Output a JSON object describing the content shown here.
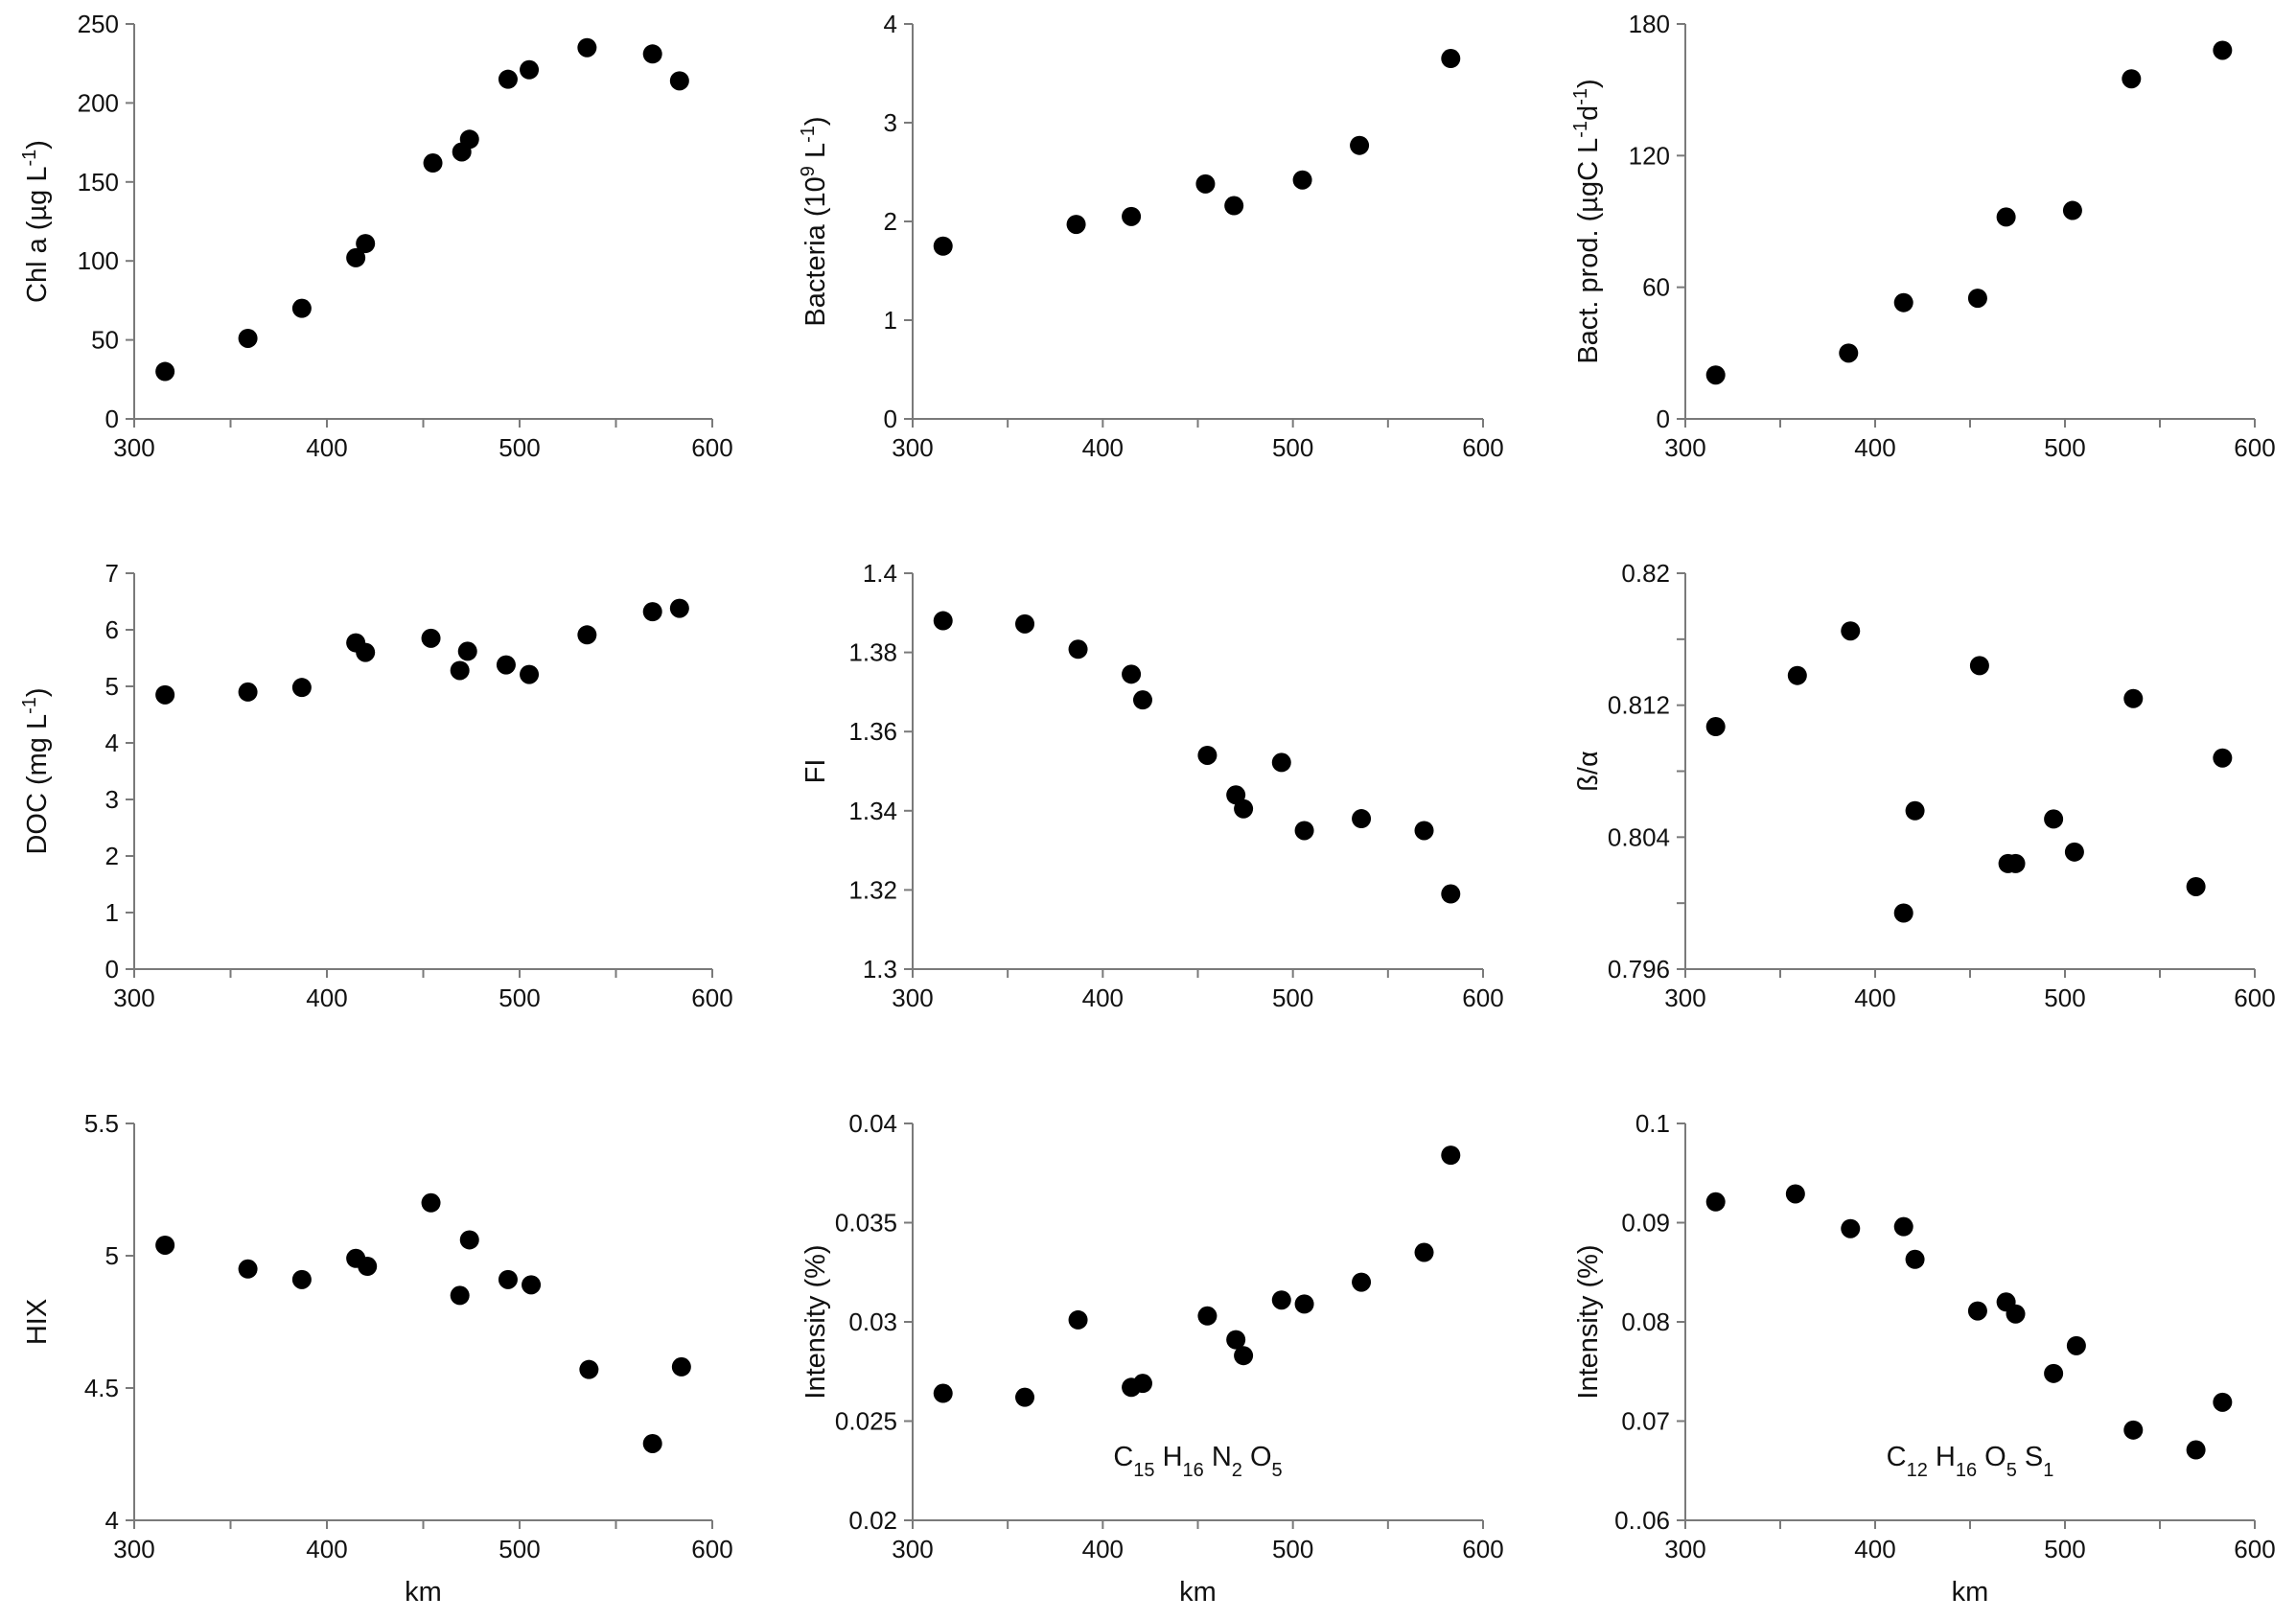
{
  "chart_data": [
    {
      "type": "scatter",
      "panel": "chla",
      "xlabel": "",
      "ylabel_parts": [
        {
          "t": "Chl a (µg L"
        },
        {
          "t": "-1",
          "sup": true
        },
        {
          "t": ")"
        }
      ],
      "xlim": [
        300,
        600
      ],
      "ylim": [
        0,
        250
      ],
      "xticks": [
        300,
        400,
        500,
        600
      ],
      "xtick_labels": [
        "300",
        "400",
        "500",
        "600"
      ],
      "yticks": [
        0,
        50,
        100,
        150,
        200,
        250
      ],
      "ytick_labels": [
        "0",
        "50",
        "100",
        "150",
        "200",
        "250"
      ],
      "x": [
        316,
        359,
        387,
        415,
        420,
        455,
        470,
        474,
        494,
        505,
        535,
        569,
        583
      ],
      "y": [
        30,
        51,
        70,
        102,
        111,
        162,
        169,
        177,
        215,
        221,
        235,
        231,
        214
      ]
    },
    {
      "type": "scatter",
      "panel": "bacteria",
      "xlabel": "",
      "ylabel_parts": [
        {
          "t": "Bacteria (10"
        },
        {
          "t": "9",
          "sup": true
        },
        {
          "t": " L"
        },
        {
          "t": "-1",
          "sup": true
        },
        {
          "t": ")"
        }
      ],
      "xlim": [
        300,
        600
      ],
      "ylim": [
        0,
        4
      ],
      "xticks": [
        300,
        400,
        500,
        600
      ],
      "xtick_labels": [
        "300",
        "400",
        "500",
        "600"
      ],
      "yticks": [
        0,
        1,
        2,
        3,
        4
      ],
      "ytick_labels": [
        "0",
        "1",
        "2",
        "3",
        "4"
      ],
      "x": [
        316,
        386,
        415,
        454,
        469,
        505,
        535,
        583
      ],
      "y": [
        1.75,
        1.97,
        2.05,
        2.38,
        2.16,
        2.42,
        2.77,
        3.65
      ]
    },
    {
      "type": "scatter",
      "panel": "bact-prod",
      "xlabel": "",
      "ylabel_parts": [
        {
          "t": "Bact. prod. (µgC L"
        },
        {
          "t": "-1",
          "sup": true
        },
        {
          "t": "d"
        },
        {
          "t": "-1",
          "sup": true
        },
        {
          "t": ")"
        }
      ],
      "xlim": [
        300,
        600
      ],
      "ylim": [
        0,
        180
      ],
      "xticks": [
        300,
        400,
        500,
        600
      ],
      "xtick_labels": [
        "300",
        "400",
        "500",
        "600"
      ],
      "yticks": [
        0,
        60,
        120,
        180
      ],
      "ytick_labels": [
        "0",
        "60",
        "120",
        "180"
      ],
      "x": [
        316,
        386,
        415,
        454,
        469,
        504,
        535,
        583
      ],
      "y": [
        20,
        30,
        53,
        55,
        92,
        95,
        155,
        168
      ]
    },
    {
      "type": "scatter",
      "panel": "doc",
      "xlabel": "",
      "ylabel_parts": [
        {
          "t": "DOC (mg L"
        },
        {
          "t": "-1",
          "sup": true
        },
        {
          "t": ")"
        }
      ],
      "xlim": [
        300,
        600
      ],
      "ylim": [
        0,
        7
      ],
      "xticks": [
        300,
        400,
        500,
        600
      ],
      "xtick_labels": [
        "300",
        "400",
        "500",
        "600"
      ],
      "yticks": [
        0,
        1,
        2,
        3,
        4,
        5,
        6,
        7
      ],
      "ytick_labels": [
        "0",
        "1",
        "2",
        "3",
        "4",
        "5",
        "6",
        "7"
      ],
      "x": [
        316,
        359,
        387,
        415,
        420,
        454,
        469,
        473,
        493,
        505,
        535,
        569,
        583
      ],
      "y": [
        4.85,
        4.9,
        4.98,
        5.77,
        5.6,
        5.85,
        5.28,
        5.62,
        5.38,
        5.21,
        5.91,
        6.32,
        6.38
      ]
    },
    {
      "type": "scatter",
      "panel": "fi",
      "xlabel": "",
      "ylabel_parts": [
        {
          "t": "FI"
        }
      ],
      "xlim": [
        300,
        600
      ],
      "ylim": [
        1.3,
        1.4
      ],
      "xticks": [
        300,
        400,
        500,
        600
      ],
      "xtick_labels": [
        "300",
        "400",
        "500",
        "600"
      ],
      "yticks": [
        1.3,
        1.32,
        1.34,
        1.36,
        1.38,
        1.4
      ],
      "ytick_labels": [
        "1.3",
        "1.32",
        "1.34",
        "1.36",
        "1.38",
        "1.4"
      ],
      "x": [
        316,
        359,
        387,
        415,
        421,
        455,
        470,
        474,
        494,
        506,
        536,
        569,
        583
      ],
      "y": [
        1.388,
        1.3872,
        1.3808,
        1.3745,
        1.368,
        1.354,
        1.344,
        1.3405,
        1.3522,
        1.335,
        1.338,
        1.335,
        1.319
      ]
    },
    {
      "type": "scatter",
      "panel": "beta-alpha",
      "xlabel": "",
      "ylabel_parts": [
        {
          "t": "ß/α"
        }
      ],
      "xlim": [
        300,
        600
      ],
      "ylim": [
        0.796,
        0.82
      ],
      "xticks": [
        300,
        400,
        500,
        600
      ],
      "xtick_labels": [
        "300",
        "400",
        "500",
        "600"
      ],
      "yticks": [
        0.796,
        0.8,
        0.804,
        0.808,
        0.812,
        0.816,
        0.82
      ],
      "ytick_labels": [
        "0.796",
        "",
        "0.804",
        "",
        "0.812",
        "",
        "0.82"
      ],
      "x": [
        316,
        359,
        387,
        415,
        421,
        455,
        470,
        474,
        494,
        505,
        536,
        569,
        583
      ],
      "y": [
        0.8107,
        0.8138,
        0.8165,
        0.7994,
        0.8056,
        0.8144,
        0.8024,
        0.8024,
        0.8051,
        0.8031,
        0.8124,
        0.801,
        0.8088
      ]
    },
    {
      "type": "scatter",
      "panel": "hix",
      "xlabel": "km",
      "ylabel_parts": [
        {
          "t": "HIX"
        }
      ],
      "xlim": [
        300,
        600
      ],
      "ylim": [
        4,
        5.5
      ],
      "xticks": [
        300,
        400,
        500,
        600
      ],
      "xtick_labels": [
        "300",
        "400",
        "500",
        "600"
      ],
      "yticks": [
        4,
        4.5,
        5,
        5.5
      ],
      "ytick_labels": [
        "4",
        "4.5",
        "5",
        "5.5"
      ],
      "x": [
        316,
        359,
        387,
        415,
        421,
        454,
        469,
        474,
        494,
        506,
        536,
        569,
        584
      ],
      "y": [
        5.04,
        4.95,
        4.91,
        4.99,
        4.96,
        5.2,
        4.85,
        5.06,
        4.91,
        4.89,
        4.57,
        4.29,
        4.58
      ]
    },
    {
      "type": "scatter",
      "panel": "intensity-c15",
      "xlabel": "km",
      "ylabel_parts": [
        {
          "t": "Intensity (%)"
        }
      ],
      "annotation_parts": [
        {
          "t": "C"
        },
        {
          "t": "15",
          "sub": true
        },
        {
          "t": " H"
        },
        {
          "t": "16",
          "sub": true
        },
        {
          "t": " N"
        },
        {
          "t": "2",
          "sub": true
        },
        {
          "t": " O"
        },
        {
          "t": "5",
          "sub": true
        }
      ],
      "xlim": [
        300,
        600
      ],
      "ylim": [
        0.02,
        0.04
      ],
      "xticks": [
        300,
        400,
        500,
        600
      ],
      "xtick_labels": [
        "300",
        "400",
        "500",
        "600"
      ],
      "yticks": [
        0.02,
        0.025,
        0.03,
        0.035,
        0.04
      ],
      "ytick_labels": [
        "0.02",
        "0.025",
        "0.03",
        "0.035",
        "0.04"
      ],
      "x": [
        316,
        359,
        387,
        415,
        421,
        455,
        470,
        474,
        494,
        506,
        536,
        569,
        583
      ],
      "y": [
        0.0264,
        0.0262,
        0.0301,
        0.0267,
        0.0269,
        0.0303,
        0.0291,
        0.0283,
        0.0311,
        0.0309,
        0.032,
        0.0335,
        0.0384
      ]
    },
    {
      "type": "scatter",
      "panel": "intensity-c12",
      "xlabel": "km",
      "ylabel_parts": [
        {
          "t": "Intensity (%)"
        }
      ],
      "annotation_parts": [
        {
          "t": "C"
        },
        {
          "t": "12",
          "sub": true
        },
        {
          "t": " H"
        },
        {
          "t": "16",
          "sub": true
        },
        {
          "t": " O"
        },
        {
          "t": "5",
          "sub": true
        },
        {
          "t": " S"
        },
        {
          "t": "1",
          "sub": true
        }
      ],
      "xlim": [
        300,
        600
      ],
      "ylim": [
        0.06,
        0.1
      ],
      "xticks": [
        300,
        400,
        500,
        600
      ],
      "xtick_labels": [
        "300",
        "400",
        "500",
        "600"
      ],
      "yticks": [
        0.06,
        0.07,
        0.08,
        0.09,
        0.1
      ],
      "ytick_labels": [
        "0..06",
        "0.07",
        "0.08",
        "0.09",
        "0.1"
      ],
      "x": [
        316,
        358,
        387,
        415,
        421,
        454,
        469,
        474,
        494,
        506,
        536,
        569,
        583
      ],
      "y": [
        0.0921,
        0.0929,
        0.0894,
        0.0896,
        0.0863,
        0.0811,
        0.082,
        0.0808,
        0.0748,
        0.0776,
        0.0691,
        0.0671,
        0.0719
      ]
    }
  ]
}
